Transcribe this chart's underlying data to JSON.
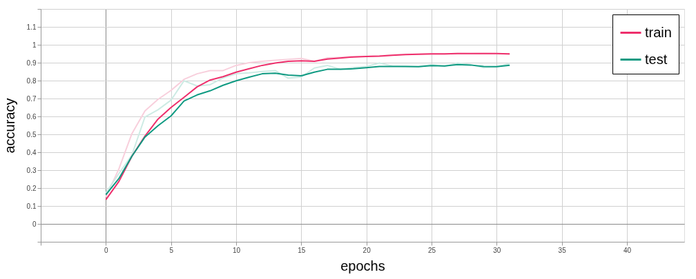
{
  "chart_data": {
    "type": "line",
    "xlabel": "epochs",
    "ylabel": "accuracy",
    "x": [
      0,
      1,
      2,
      3,
      4,
      5,
      6,
      7,
      8,
      9,
      10,
      11,
      12,
      13,
      14,
      15,
      16,
      17,
      18,
      19,
      20,
      21,
      22,
      23,
      24,
      25,
      26,
      27,
      28,
      29,
      30,
      31
    ],
    "series": [
      {
        "color": "#f8cfdc",
        "values": [
          0.15,
          0.307,
          0.504,
          0.631,
          0.695,
          0.745,
          0.807,
          0.838,
          0.856,
          0.856,
          0.885,
          0.9,
          0.908,
          0.913,
          0.918,
          0.924,
          0.908,
          0.927,
          0.93,
          0.934,
          0.936,
          0.938,
          0.943,
          0.947,
          0.948,
          0.95,
          0.949,
          0.952,
          0.951,
          0.952,
          0.951,
          0.948
        ]
      },
      {
        "color": "#cdebe4",
        "values": [
          0.173,
          0.281,
          0.385,
          0.597,
          0.637,
          0.691,
          0.799,
          0.77,
          0.777,
          0.815,
          0.838,
          0.843,
          0.851,
          0.856,
          0.813,
          0.82,
          0.87,
          0.885,
          0.863,
          0.873,
          0.879,
          0.898,
          0.882,
          0.879,
          0.877,
          0.889,
          0.879,
          0.898,
          0.889,
          0.872,
          0.877,
          0.895
        ]
      },
      {
        "name": "train",
        "color": "#ee2f6c",
        "values": [
          0.135,
          0.237,
          0.378,
          0.49,
          0.585,
          0.65,
          0.707,
          0.765,
          0.803,
          0.822,
          0.847,
          0.866,
          0.885,
          0.898,
          0.908,
          0.911,
          0.908,
          0.92,
          0.926,
          0.932,
          0.935,
          0.937,
          0.941,
          0.945,
          0.947,
          0.949,
          0.949,
          0.951,
          0.951,
          0.951,
          0.951,
          0.949
        ]
      },
      {
        "name": "test",
        "color": "#0f9a82",
        "values": [
          0.163,
          0.253,
          0.378,
          0.485,
          0.548,
          0.603,
          0.686,
          0.72,
          0.743,
          0.774,
          0.799,
          0.819,
          0.838,
          0.841,
          0.831,
          0.827,
          0.847,
          0.863,
          0.863,
          0.866,
          0.872,
          0.879,
          0.879,
          0.879,
          0.878,
          0.884,
          0.882,
          0.889,
          0.887,
          0.879,
          0.878,
          0.886
        ]
      }
    ],
    "xlim": [
      -5,
      44.4
    ],
    "xticks": [
      {
        "value": -5,
        "label": null
      },
      0,
      5,
      10,
      15,
      20,
      25,
      30,
      35,
      40
    ],
    "ylim": [
      -0.1,
      1.2
    ],
    "yticks": [
      {
        "value": -0.1,
        "label": null
      },
      0,
      0.1,
      0.2,
      0.3,
      0.4,
      0.5,
      0.6,
      0.7,
      0.8,
      0.9,
      1,
      1.1,
      {
        "value": 1.2,
        "label": null
      }
    ],
    "grid": true,
    "legend": "top right",
    "marker": "none",
    "line_style": "solid"
  }
}
